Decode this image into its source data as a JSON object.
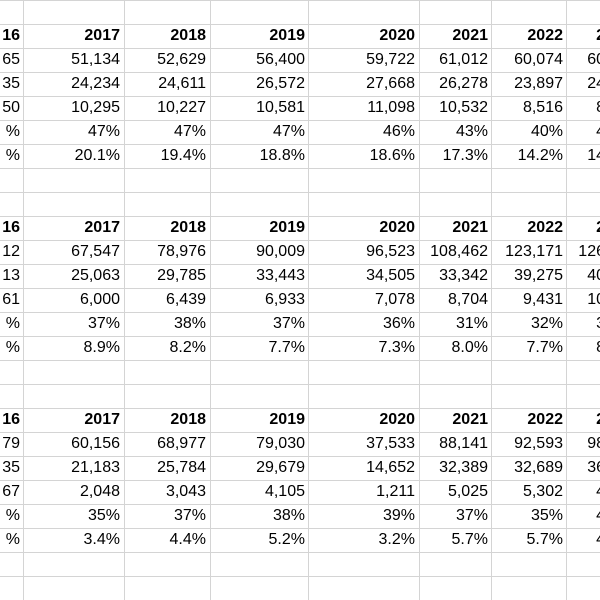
{
  "blocks": [
    {
      "header": [
        "16",
        "2017",
        "2018",
        "2019",
        "2020",
        "2021",
        "2022",
        "2"
      ],
      "rows": [
        [
          "65",
          "51,134",
          "52,629",
          "56,400",
          "59,722",
          "61,012",
          "60,074",
          "60"
        ],
        [
          "35",
          "24,234",
          "24,611",
          "26,572",
          "27,668",
          "26,278",
          "23,897",
          "24"
        ],
        [
          "50",
          "10,295",
          "10,227",
          "10,581",
          "11,098",
          "10,532",
          "8,516",
          "8"
        ],
        [
          "%",
          "47%",
          "47%",
          "47%",
          "46%",
          "43%",
          "40%",
          "4"
        ],
        [
          "%",
          "20.1%",
          "19.4%",
          "18.8%",
          "18.6%",
          "17.3%",
          "14.2%",
          "14"
        ]
      ]
    },
    {
      "header": [
        "16",
        "2017",
        "2018",
        "2019",
        "2020",
        "2021",
        "2022",
        "2"
      ],
      "rows": [
        [
          "12",
          "67,547",
          "78,976",
          "90,009",
          "96,523",
          "108,462",
          "123,171",
          "126"
        ],
        [
          "13",
          "25,063",
          "29,785",
          "33,443",
          "34,505",
          "33,342",
          "39,275",
          "40"
        ],
        [
          "61",
          "6,000",
          "6,439",
          "6,933",
          "7,078",
          "8,704",
          "9,431",
          "10"
        ],
        [
          "%",
          "37%",
          "38%",
          "37%",
          "36%",
          "31%",
          "32%",
          "3"
        ],
        [
          "%",
          "8.9%",
          "8.2%",
          "7.7%",
          "7.3%",
          "8.0%",
          "7.7%",
          "8"
        ]
      ]
    },
    {
      "header": [
        "16",
        "2017",
        "2018",
        "2019",
        "2020",
        "2021",
        "2022",
        "2"
      ],
      "rows": [
        [
          "79",
          "60,156",
          "68,977",
          "79,030",
          "37,533",
          "88,141",
          "92,593",
          "98"
        ],
        [
          "35",
          "21,183",
          "25,784",
          "29,679",
          "14,652",
          "32,389",
          "32,689",
          "36"
        ],
        [
          "67",
          "2,048",
          "3,043",
          "4,105",
          "1,211",
          "5,025",
          "5,302",
          "4"
        ],
        [
          "%",
          "35%",
          "37%",
          "38%",
          "39%",
          "37%",
          "35%",
          "4"
        ],
        [
          "%",
          "3.4%",
          "4.4%",
          "5.2%",
          "3.2%",
          "5.7%",
          "5.7%",
          "4"
        ]
      ]
    }
  ]
}
